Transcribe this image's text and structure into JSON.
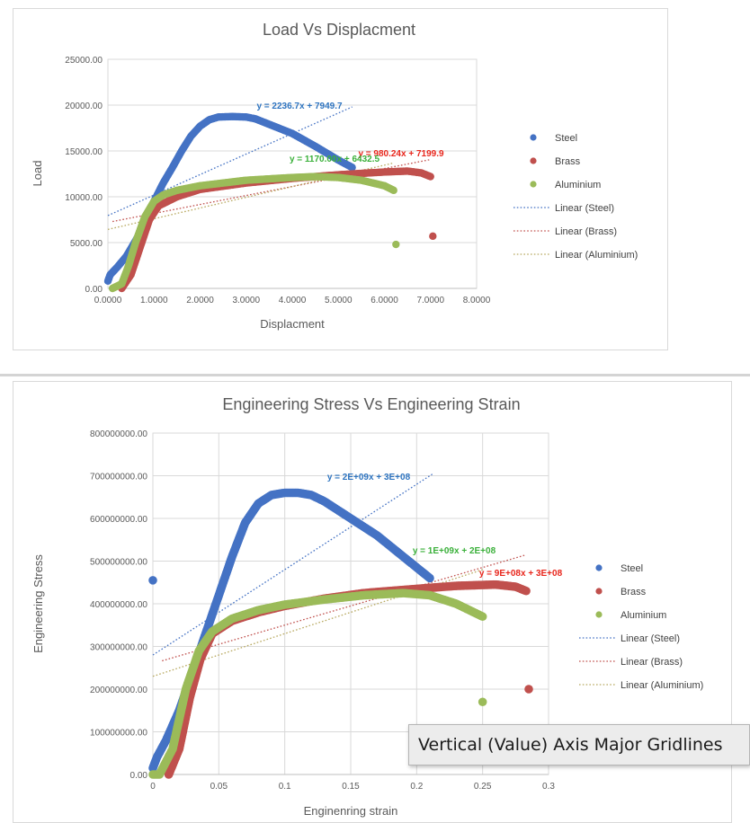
{
  "colors": {
    "steel": "#4472c4",
    "brass": "#c0504d",
    "aluminium": "#9bbb59",
    "eq_steel": "#2e74c0",
    "eq_brass": "#e8261c",
    "eq_aluminium": "#3ab03a"
  },
  "tooltip": {
    "text": "Vertical (Value) Axis Major Gridlines"
  },
  "chart_data": [
    {
      "type": "scatter",
      "title": "Load Vs Displacment",
      "xlabel": "Displacment",
      "ylabel": "Load",
      "xlim": [
        0,
        8
      ],
      "ylim": [
        0,
        25000
      ],
      "x_ticks": [
        "0.0000",
        "1.0000",
        "2.0000",
        "3.0000",
        "4.0000",
        "5.0000",
        "6.0000",
        "7.0000",
        "8.0000"
      ],
      "y_ticks": [
        "0.00",
        "5000.00",
        "10000.00",
        "15000.00",
        "20000.00",
        "25000.00"
      ],
      "grid": "horizontal",
      "legend_position": "right",
      "series": [
        {
          "name": "Steel",
          "color": "#4472c4",
          "points": [
            [
              0,
              800
            ],
            [
              0.05,
              1500
            ],
            [
              0.2,
              2300
            ],
            [
              0.4,
              3500
            ],
            [
              0.6,
              5200
            ],
            [
              0.8,
              7000
            ],
            [
              1.0,
              9500
            ],
            [
              1.2,
              11500
            ],
            [
              1.4,
              13200
            ],
            [
              1.6,
              15000
            ],
            [
              1.8,
              16600
            ],
            [
              2.0,
              17700
            ],
            [
              2.2,
              18400
            ],
            [
              2.4,
              18700
            ],
            [
              2.7,
              18750
            ],
            [
              3.0,
              18700
            ],
            [
              3.2,
              18500
            ],
            [
              3.5,
              17900
            ],
            [
              4.0,
              16900
            ],
            [
              4.5,
              15500
            ],
            [
              5.0,
              14000
            ],
            [
              5.3,
              13200
            ]
          ],
          "outliers": []
        },
        {
          "name": "Brass",
          "color": "#c0504d",
          "points": [
            [
              0.3,
              0
            ],
            [
              0.5,
              1500
            ],
            [
              0.7,
              4500
            ],
            [
              0.9,
              7500
            ],
            [
              1.1,
              9000
            ],
            [
              1.5,
              10000
            ],
            [
              2.0,
              10800
            ],
            [
              3.0,
              11500
            ],
            [
              4.0,
              12000
            ],
            [
              5.0,
              12400
            ],
            [
              6.0,
              12700
            ],
            [
              6.5,
              12800
            ],
            [
              6.8,
              12600
            ],
            [
              7.0,
              12200
            ]
          ],
          "outliers": [
            [
              7.05,
              5700
            ]
          ]
        },
        {
          "name": "Aluminium",
          "color": "#9bbb59",
          "points": [
            [
              0.1,
              0
            ],
            [
              0.3,
              500
            ],
            [
              0.45,
              2500
            ],
            [
              0.6,
              5000
            ],
            [
              0.8,
              7800
            ],
            [
              1.0,
              9500
            ],
            [
              1.2,
              10200
            ],
            [
              1.5,
              10700
            ],
            [
              2.0,
              11200
            ],
            [
              3.0,
              11800
            ],
            [
              4.0,
              12100
            ],
            [
              4.5,
              12200
            ],
            [
              5.0,
              12100
            ],
            [
              5.5,
              11800
            ],
            [
              6.0,
              11200
            ],
            [
              6.2,
              10700
            ]
          ],
          "outliers": [
            [
              6.25,
              4800
            ]
          ]
        }
      ],
      "trendlines": [
        {
          "name": "Linear (Steel)",
          "color": "#4472c4",
          "slope": 2236.7,
          "intercept": 7949.7,
          "x_range": [
            0,
            5.3
          ],
          "equation": "y = 2236.7x + 7949.7"
        },
        {
          "name": "Linear (Brass)",
          "color": "#c0504d",
          "slope": 980.24,
          "intercept": 7199.9,
          "x_range": [
            0.1,
            7.0
          ],
          "equation": "y = 980.24x + 7199.9"
        },
        {
          "name": "Linear (Aluminium)",
          "color": "#b8a960",
          "slope": 1170.0,
          "intercept": 6432.5,
          "x_range": [
            0,
            6.2
          ],
          "equation": "y = 1170.00x + 6432.5"
        }
      ]
    },
    {
      "type": "scatter",
      "title": "Engineering Stress Vs Engineering Strain",
      "xlabel": "Enginenring strain",
      "ylabel": "Engineering Stress",
      "xlim": [
        0,
        0.3
      ],
      "ylim": [
        0,
        800000000
      ],
      "x_ticks": [
        "0",
        "0.05",
        "0.1",
        "0.15",
        "0.2",
        "0.25",
        "0.3"
      ],
      "y_ticks": [
        "0.00",
        "100000000.00",
        "200000000.00",
        "300000000.00",
        "400000000.00",
        "500000000.00",
        "600000000.00",
        "700000000.00",
        "800000000.00"
      ],
      "grid": "both",
      "legend_position": "right",
      "series": [
        {
          "name": "Steel",
          "color": "#4472c4",
          "points": [
            [
              0,
              15000000
            ],
            [
              0.003,
              40000000
            ],
            [
              0.01,
              80000000
            ],
            [
              0.02,
              150000000
            ],
            [
              0.03,
              240000000
            ],
            [
              0.04,
              330000000
            ],
            [
              0.05,
              420000000
            ],
            [
              0.06,
              510000000
            ],
            [
              0.07,
              590000000
            ],
            [
              0.08,
              635000000
            ],
            [
              0.09,
              655000000
            ],
            [
              0.1,
              660000000
            ],
            [
              0.11,
              660000000
            ],
            [
              0.12,
              655000000
            ],
            [
              0.13,
              640000000
            ],
            [
              0.15,
              600000000
            ],
            [
              0.17,
              560000000
            ],
            [
              0.19,
              510000000
            ],
            [
              0.2,
              485000000
            ],
            [
              0.21,
              460000000
            ]
          ],
          "outliers": [
            [
              0,
              455000000
            ]
          ]
        },
        {
          "name": "Brass",
          "color": "#c0504d",
          "points": [
            [
              0.012,
              0
            ],
            [
              0.02,
              60000000
            ],
            [
              0.028,
              180000000
            ],
            [
              0.036,
              270000000
            ],
            [
              0.045,
              330000000
            ],
            [
              0.06,
              360000000
            ],
            [
              0.08,
              380000000
            ],
            [
              0.1,
              395000000
            ],
            [
              0.13,
              412000000
            ],
            [
              0.16,
              425000000
            ],
            [
              0.2,
              435000000
            ],
            [
              0.23,
              442000000
            ],
            [
              0.26,
              445000000
            ],
            [
              0.275,
              440000000
            ],
            [
              0.283,
              430000000
            ]
          ],
          "outliers": [
            [
              0.285,
              200000000
            ]
          ]
        },
        {
          "name": "Aluminium",
          "color": "#9bbb59",
          "points": [
            [
              0,
              0
            ],
            [
              0.005,
              0
            ],
            [
              0.015,
              60000000
            ],
            [
              0.025,
              200000000
            ],
            [
              0.035,
              290000000
            ],
            [
              0.045,
              335000000
            ],
            [
              0.06,
              365000000
            ],
            [
              0.08,
              385000000
            ],
            [
              0.1,
              398000000
            ],
            [
              0.13,
              410000000
            ],
            [
              0.16,
              420000000
            ],
            [
              0.19,
              425000000
            ],
            [
              0.21,
              420000000
            ],
            [
              0.23,
              400000000
            ],
            [
              0.25,
              370000000
            ]
          ],
          "outliers": [
            [
              0.25,
              170000000
            ]
          ]
        }
      ],
      "trendlines": [
        {
          "name": "Linear (Steel)",
          "color": "#4472c4",
          "slope": 2000000000,
          "intercept": 280000000,
          "x_range": [
            0,
            0.212
          ],
          "equation": "y = 2E+09x + 3E+08"
        },
        {
          "name": "Linear (Brass)",
          "color": "#c0504d",
          "slope": 900000000,
          "intercept": 260000000,
          "x_range": [
            0.007,
            0.283
          ],
          "equation": "y = 9E+08x + 3E+08"
        },
        {
          "name": "Linear (Aluminium)",
          "color": "#b8a960",
          "slope": 1000000000,
          "intercept": 230000000,
          "x_range": [
            0,
            0.25
          ],
          "equation": "y = 1E+09x + 2E+08"
        }
      ]
    }
  ]
}
